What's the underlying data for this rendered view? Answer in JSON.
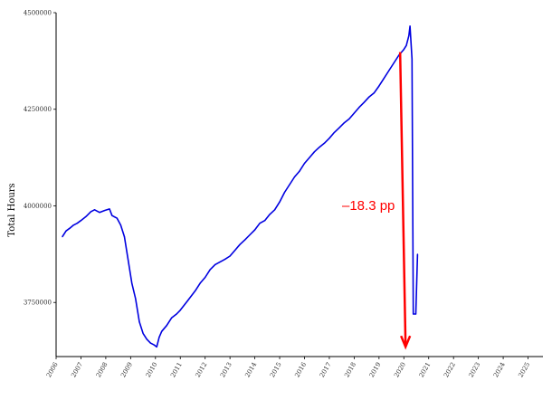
{
  "chart_data": {
    "type": "line",
    "title": "",
    "xlabel": "",
    "ylabel": "Total Hours",
    "xlim": [
      2006,
      2025.6
    ],
    "ylim": [
      3610000,
      4500000
    ],
    "x_ticks": [
      "2006",
      "2007",
      "2008",
      "2009",
      "2010",
      "2011",
      "2012",
      "2013",
      "2014",
      "2015",
      "2016",
      "2017",
      "2018",
      "2019",
      "2020",
      "2021",
      "2022",
      "2023",
      "2024",
      "2025"
    ],
    "y_ticks": [
      3750000,
      4000000,
      4250000,
      4500000
    ],
    "grid": false,
    "legend": "none",
    "colors": {
      "line": "#0000e0",
      "annotation": "#ff0000",
      "axis": "#000000"
    },
    "series": [
      {
        "points": [
          [
            2006.25,
            3920000
          ],
          [
            2006.4,
            3935000
          ],
          [
            2006.55,
            3942000
          ],
          [
            2006.7,
            3950000
          ],
          [
            2006.85,
            3955000
          ],
          [
            2007.0,
            3962000
          ],
          [
            2007.2,
            3972000
          ],
          [
            2007.4,
            3985000
          ],
          [
            2007.55,
            3990000
          ],
          [
            2007.75,
            3983000
          ],
          [
            2007.95,
            3988000
          ],
          [
            2008.15,
            3992000
          ],
          [
            2008.25,
            3975000
          ],
          [
            2008.45,
            3968000
          ],
          [
            2008.6,
            3950000
          ],
          [
            2008.75,
            3920000
          ],
          [
            2008.9,
            3860000
          ],
          [
            2009.05,
            3800000
          ],
          [
            2009.2,
            3760000
          ],
          [
            2009.35,
            3700000
          ],
          [
            2009.5,
            3670000
          ],
          [
            2009.65,
            3655000
          ],
          [
            2009.8,
            3645000
          ],
          [
            2009.95,
            3640000
          ],
          [
            2010.05,
            3635000
          ],
          [
            2010.15,
            3660000
          ],
          [
            2010.25,
            3675000
          ],
          [
            2010.45,
            3690000
          ],
          [
            2010.65,
            3710000
          ],
          [
            2010.85,
            3720000
          ],
          [
            2011.0,
            3730000
          ],
          [
            2011.3,
            3755000
          ],
          [
            2011.6,
            3780000
          ],
          [
            2011.8,
            3800000
          ],
          [
            2012.0,
            3815000
          ],
          [
            2012.2,
            3835000
          ],
          [
            2012.4,
            3848000
          ],
          [
            2012.6,
            3855000
          ],
          [
            2012.8,
            3862000
          ],
          [
            2013.0,
            3870000
          ],
          [
            2013.2,
            3885000
          ],
          [
            2013.4,
            3900000
          ],
          [
            2013.6,
            3912000
          ],
          [
            2013.8,
            3925000
          ],
          [
            2014.0,
            3938000
          ],
          [
            2014.2,
            3955000
          ],
          [
            2014.4,
            3962000
          ],
          [
            2014.6,
            3978000
          ],
          [
            2014.8,
            3990000
          ],
          [
            2015.0,
            4010000
          ],
          [
            2015.2,
            4035000
          ],
          [
            2015.4,
            4055000
          ],
          [
            2015.6,
            4075000
          ],
          [
            2015.8,
            4090000
          ],
          [
            2016.0,
            4110000
          ],
          [
            2016.2,
            4125000
          ],
          [
            2016.4,
            4140000
          ],
          [
            2016.6,
            4152000
          ],
          [
            2016.8,
            4162000
          ],
          [
            2017.0,
            4175000
          ],
          [
            2017.2,
            4190000
          ],
          [
            2017.4,
            4202000
          ],
          [
            2017.6,
            4215000
          ],
          [
            2017.8,
            4225000
          ],
          [
            2018.0,
            4240000
          ],
          [
            2018.2,
            4255000
          ],
          [
            2018.4,
            4268000
          ],
          [
            2018.6,
            4282000
          ],
          [
            2018.8,
            4292000
          ],
          [
            2019.0,
            4310000
          ],
          [
            2019.2,
            4330000
          ],
          [
            2019.4,
            4350000
          ],
          [
            2019.6,
            4370000
          ],
          [
            2019.8,
            4390000
          ],
          [
            2020.0,
            4405000
          ],
          [
            2020.1,
            4415000
          ],
          [
            2020.2,
            4440000
          ],
          [
            2020.25,
            4465000
          ],
          [
            2020.33,
            4380000
          ],
          [
            2020.38,
            3720000
          ],
          [
            2020.48,
            3720000
          ],
          [
            2020.55,
            3875000
          ]
        ]
      }
    ],
    "annotations": [
      {
        "text": "–18.3 pp",
        "color": "#ff0000"
      }
    ]
  }
}
